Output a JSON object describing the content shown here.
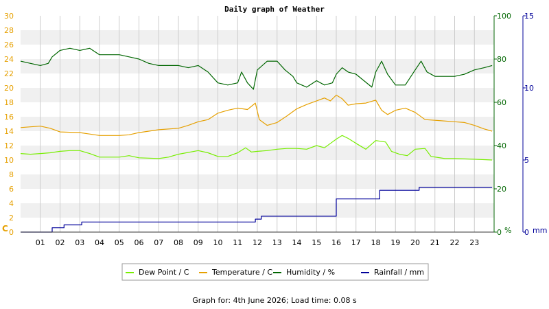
{
  "chart_data": {
    "type": "line",
    "title": "Daily graph of Weather",
    "x_ticks": [
      "01",
      "02",
      "03",
      "04",
      "05",
      "06",
      "07",
      "08",
      "09",
      "10",
      "11",
      "12",
      "13",
      "14",
      "15",
      "16",
      "17",
      "18",
      "19",
      "20",
      "21",
      "22",
      "23"
    ],
    "x_range_hours": [
      0,
      24
    ],
    "axes": {
      "left": {
        "label": "C",
        "range": [
          0,
          30
        ],
        "ticks": [
          "0",
          "2",
          "4",
          "6",
          "8",
          "10",
          "12",
          "14",
          "16",
          "18",
          "20",
          "22",
          "24",
          "26",
          "28",
          "30"
        ],
        "color": "#e6a000"
      },
      "humidity": {
        "label": "%",
        "range": [
          0,
          100
        ],
        "ticks": [
          "0",
          "20",
          "40",
          "60",
          "80",
          "100"
        ],
        "color": "#006600"
      },
      "rainfall": {
        "label": "mm",
        "range": [
          0,
          15
        ],
        "ticks": [
          "0",
          "5",
          "10",
          "15"
        ],
        "color": "#000099"
      }
    },
    "grid": true,
    "series": [
      {
        "name": "Dew Point / C",
        "axis": "left",
        "color": "#77ee00",
        "points": [
          [
            0,
            10.9
          ],
          [
            0.5,
            10.8
          ],
          [
            1,
            10.9
          ],
          [
            1.5,
            11.0
          ],
          [
            2,
            11.2
          ],
          [
            2.5,
            11.3
          ],
          [
            3,
            11.3
          ],
          [
            3.5,
            10.9
          ],
          [
            4,
            10.4
          ],
          [
            5,
            10.4
          ],
          [
            5.5,
            10.6
          ],
          [
            6,
            10.3
          ],
          [
            7,
            10.2
          ],
          [
            7.5,
            10.4
          ],
          [
            8,
            10.8
          ],
          [
            9,
            11.3
          ],
          [
            9.5,
            11.0
          ],
          [
            10,
            10.5
          ],
          [
            10.5,
            10.5
          ],
          [
            11,
            11.0
          ],
          [
            11.4,
            11.7
          ],
          [
            11.7,
            11.1
          ],
          [
            12,
            11.2
          ],
          [
            12.5,
            11.3
          ],
          [
            13,
            11.5
          ],
          [
            13.5,
            11.6
          ],
          [
            14,
            11.6
          ],
          [
            14.5,
            11.5
          ],
          [
            15,
            12.0
          ],
          [
            15.4,
            11.7
          ],
          [
            15.8,
            12.5
          ],
          [
            16,
            12.9
          ],
          [
            16.3,
            13.4
          ],
          [
            16.6,
            13.0
          ],
          [
            17,
            12.3
          ],
          [
            17.5,
            11.5
          ],
          [
            18,
            12.7
          ],
          [
            18.5,
            12.5
          ],
          [
            18.8,
            11.2
          ],
          [
            19.2,
            10.8
          ],
          [
            19.6,
            10.6
          ],
          [
            20,
            11.5
          ],
          [
            20.5,
            11.6
          ],
          [
            20.8,
            10.5
          ],
          [
            21.5,
            10.2
          ],
          [
            22,
            10.2
          ],
          [
            23,
            10.1
          ],
          [
            23.9,
            10.0
          ]
        ]
      },
      {
        "name": "Temperature / C",
        "axis": "left",
        "color": "#e6a000",
        "points": [
          [
            0,
            14.5
          ],
          [
            0.5,
            14.6
          ],
          [
            1,
            14.7
          ],
          [
            1.5,
            14.4
          ],
          [
            2,
            13.9
          ],
          [
            3,
            13.8
          ],
          [
            3.5,
            13.6
          ],
          [
            4,
            13.4
          ],
          [
            5,
            13.4
          ],
          [
            5.5,
            13.5
          ],
          [
            6,
            13.8
          ],
          [
            7,
            14.2
          ],
          [
            8,
            14.4
          ],
          [
            8.5,
            14.8
          ],
          [
            9,
            15.3
          ],
          [
            9.5,
            15.6
          ],
          [
            10,
            16.5
          ],
          [
            10.5,
            16.9
          ],
          [
            11,
            17.2
          ],
          [
            11.5,
            17.0
          ],
          [
            11.9,
            17.9
          ],
          [
            12.1,
            15.6
          ],
          [
            12.5,
            14.8
          ],
          [
            13,
            15.2
          ],
          [
            13.5,
            16.1
          ],
          [
            14,
            17.1
          ],
          [
            14.5,
            17.7
          ],
          [
            15,
            18.2
          ],
          [
            15.4,
            18.6
          ],
          [
            15.7,
            18.2
          ],
          [
            16,
            19.0
          ],
          [
            16.3,
            18.5
          ],
          [
            16.6,
            17.6
          ],
          [
            17,
            17.8
          ],
          [
            17.5,
            17.9
          ],
          [
            18,
            18.3
          ],
          [
            18.3,
            16.9
          ],
          [
            18.6,
            16.3
          ],
          [
            19,
            16.9
          ],
          [
            19.5,
            17.2
          ],
          [
            20,
            16.6
          ],
          [
            20.5,
            15.6
          ],
          [
            21,
            15.5
          ],
          [
            22,
            15.3
          ],
          [
            22.5,
            15.2
          ],
          [
            23,
            14.8
          ],
          [
            23.5,
            14.3
          ],
          [
            23.9,
            14.0
          ]
        ]
      },
      {
        "name": "Humidity / %",
        "axis": "humidity",
        "color": "#006600",
        "points": [
          [
            0,
            79
          ],
          [
            0.5,
            78
          ],
          [
            1,
            77
          ],
          [
            1.4,
            78
          ],
          [
            1.6,
            81
          ],
          [
            2,
            84
          ],
          [
            2.5,
            85
          ],
          [
            3,
            84
          ],
          [
            3.5,
            85
          ],
          [
            4,
            82
          ],
          [
            5,
            82
          ],
          [
            5.5,
            81
          ],
          [
            6,
            80
          ],
          [
            6.5,
            78
          ],
          [
            7,
            77
          ],
          [
            8,
            77
          ],
          [
            8.5,
            76
          ],
          [
            9,
            77
          ],
          [
            9.5,
            74
          ],
          [
            10,
            69
          ],
          [
            10.5,
            68
          ],
          [
            11,
            69
          ],
          [
            11.2,
            74
          ],
          [
            11.5,
            69
          ],
          [
            11.8,
            66
          ],
          [
            12,
            75
          ],
          [
            12.5,
            79
          ],
          [
            13,
            79
          ],
          [
            13.4,
            75
          ],
          [
            13.8,
            72
          ],
          [
            14,
            69
          ],
          [
            14.5,
            67
          ],
          [
            15,
            70
          ],
          [
            15.4,
            68
          ],
          [
            15.8,
            69
          ],
          [
            16,
            73
          ],
          [
            16.3,
            76
          ],
          [
            16.6,
            74
          ],
          [
            17,
            73
          ],
          [
            17.4,
            70
          ],
          [
            17.8,
            67
          ],
          [
            18,
            74
          ],
          [
            18.3,
            79
          ],
          [
            18.6,
            73
          ],
          [
            19,
            68
          ],
          [
            19.5,
            68
          ],
          [
            20,
            75
          ],
          [
            20.3,
            79
          ],
          [
            20.6,
            74
          ],
          [
            21,
            72
          ],
          [
            21.5,
            72
          ],
          [
            22,
            72
          ],
          [
            22.5,
            73
          ],
          [
            23,
            75
          ],
          [
            23.5,
            76
          ],
          [
            23.9,
            77
          ]
        ]
      },
      {
        "name": "Rainfall / mm",
        "axis": "rainfall",
        "color": "#000099",
        "step": true,
        "points": [
          [
            0,
            0
          ],
          [
            1.6,
            0
          ],
          [
            1.6,
            0.3
          ],
          [
            2.2,
            0.3
          ],
          [
            2.2,
            0.5
          ],
          [
            3.1,
            0.5
          ],
          [
            3.1,
            0.7
          ],
          [
            11.9,
            0.7
          ],
          [
            11.9,
            0.9
          ],
          [
            12.2,
            0.9
          ],
          [
            12.2,
            1.1
          ],
          [
            16.0,
            1.1
          ],
          [
            16.0,
            2.3
          ],
          [
            18.2,
            2.3
          ],
          [
            18.2,
            2.9
          ],
          [
            20.2,
            2.9
          ],
          [
            20.2,
            3.1
          ],
          [
            23.9,
            3.1
          ]
        ]
      }
    ],
    "legend": [
      "Dew Point / C",
      "Temperature / C",
      "Humidity / %",
      "Rainfall / mm"
    ],
    "legend_position": "bottom"
  },
  "footer": {
    "text": "Graph for: 4th June 2026; Load time: 0.08 s"
  }
}
